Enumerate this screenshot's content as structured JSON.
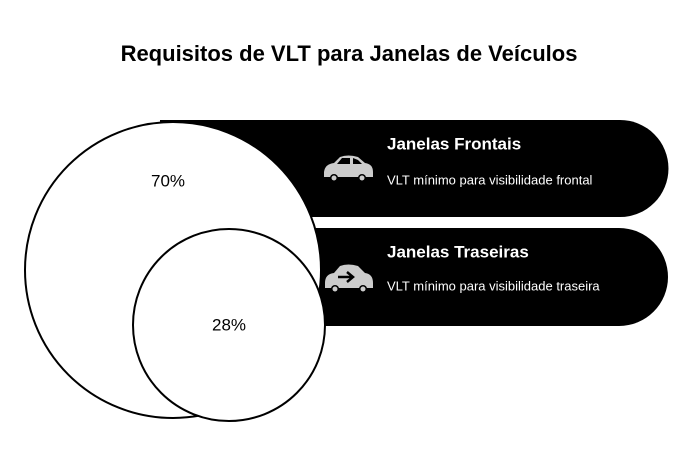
{
  "header": {
    "title": "Requisitos de VLT para Janelas de Veículos"
  },
  "items": [
    {
      "value_label": "70%",
      "title": "Janelas Frontais",
      "description": "VLT mínimo para visibilidade frontal"
    },
    {
      "value_label": "28%",
      "title": "Janelas Traseiras",
      "description": "VLT mínimo para visibilidade traseira"
    }
  ]
}
